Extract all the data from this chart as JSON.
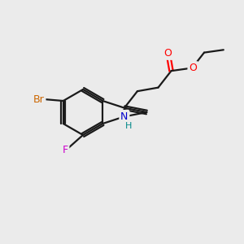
{
  "background_color": "#ebebeb",
  "bond_color": "#1a1a1a",
  "atom_colors": {
    "O": "#ff0000",
    "N": "#0000cc",
    "Br": "#cc6600",
    "F": "#cc00cc",
    "H": "#008888"
  },
  "figsize": [
    3.0,
    3.0
  ],
  "dpi": 100,
  "bond_lw": 1.6,
  "font_size": 9
}
